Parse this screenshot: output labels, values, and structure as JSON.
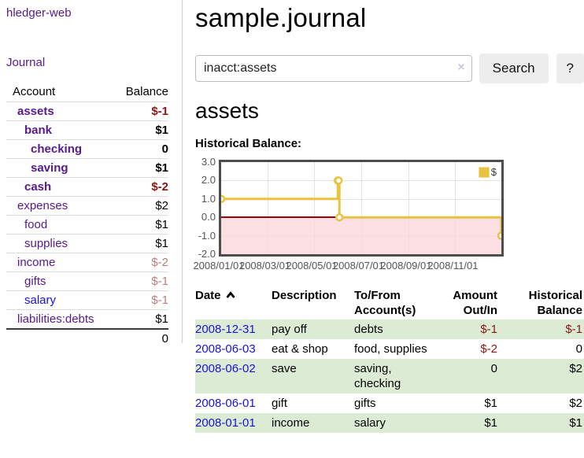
{
  "colors": {
    "link_purple": "#551a8b",
    "link_blue": "#1813d6",
    "negative": "#8b1717",
    "negative_muted": "#b87c7c",
    "row_green": "#dcecd4",
    "button_bg": "#ededed",
    "grid_line": "#e2e2e2",
    "chart_border": "#4d4d4d",
    "chart_negative_fill": "#fbd7db",
    "chart_zero_line": "#9d0000"
  },
  "sidebar": {
    "app_title": "hledger-web",
    "nav": {
      "journal_label": "Journal"
    },
    "accounts_table": {
      "headers": {
        "account": "Account",
        "balance": "Balance"
      },
      "rows": [
        {
          "name": "assets",
          "balance": "$-1",
          "level": 1,
          "in_account": true,
          "balance_style": "negative"
        },
        {
          "name": "bank",
          "balance": "$1",
          "level": 2,
          "in_account": true,
          "balance_style": "normal"
        },
        {
          "name": "checking",
          "balance": "0",
          "level": 3,
          "in_account": true,
          "balance_style": "normal"
        },
        {
          "name": "saving",
          "balance": "$1",
          "level": 3,
          "in_account": true,
          "balance_style": "normal"
        },
        {
          "name": "cash",
          "balance": "$-2",
          "level": 2,
          "in_account": true,
          "balance_style": "negative"
        },
        {
          "name": "expenses",
          "balance": "$2",
          "level": 1,
          "in_account": false,
          "balance_style": "normal"
        },
        {
          "name": "food",
          "balance": "$1",
          "level": 2,
          "in_account": false,
          "balance_style": "normal"
        },
        {
          "name": "supplies",
          "balance": "$1",
          "level": 2,
          "in_account": false,
          "balance_style": "normal"
        },
        {
          "name": "income",
          "balance": "$-2",
          "level": 1,
          "in_account": false,
          "balance_style": "negative-muted"
        },
        {
          "name": "gifts",
          "balance": "$-1",
          "level": 2,
          "in_account": false,
          "balance_style": "negative-muted"
        },
        {
          "name": "salary",
          "balance": "$-1",
          "level": 2,
          "in_account": false,
          "balance_style": "negative-muted",
          "link_style": "unvisited"
        },
        {
          "name": "liabilities:debts",
          "balance": "$1",
          "level": 1,
          "in_account": false,
          "balance_style": "normal"
        }
      ],
      "total": "0"
    }
  },
  "header": {
    "title": "sample.journal"
  },
  "search": {
    "value": "inacct:assets",
    "clear_icon": "×",
    "button_label": "Search",
    "help_label": "?"
  },
  "account_page": {
    "title": "assets",
    "chart_label": "Historical Balance:"
  },
  "chart_data": {
    "type": "line",
    "step": true,
    "title": "Historical Balance:",
    "ylim": [
      -2,
      3
    ],
    "xlim_days": [
      0,
      365
    ],
    "y_ticks": [
      3.0,
      2.0,
      1.0,
      0.0,
      -1.0,
      -2.0
    ],
    "x_ticks": [
      {
        "label": "2008/01/01",
        "day": 0
      },
      {
        "label": "2008/03/01",
        "day": 60
      },
      {
        "label": "2008/05/01",
        "day": 121
      },
      {
        "label": "2008/07/01",
        "day": 182
      },
      {
        "label": "2008/09/01",
        "day": 244
      },
      {
        "label": "2008/11/01",
        "day": 305
      }
    ],
    "series": [
      {
        "name": "$",
        "color": "#e9c340",
        "points": [
          {
            "date": "2008-01-01",
            "day": 0,
            "value": 1
          },
          {
            "date": "2008-06-01",
            "day": 152,
            "value": 2
          },
          {
            "date": "2008-06-02",
            "day": 153,
            "value": 2
          },
          {
            "date": "2008-06-03",
            "day": 154,
            "value": 0
          },
          {
            "date": "2008-12-31",
            "day": 365,
            "value": -1
          }
        ]
      }
    ],
    "legend_position": "top-right",
    "grid": true
  },
  "register_table": {
    "headers": {
      "date": "Date",
      "description": "Description",
      "tofrom": "To/From Account(s)",
      "amount": "Amount Out/In",
      "balance": "Historical Balance"
    },
    "rows": [
      {
        "date": "2008-12-31",
        "description": "pay off",
        "accounts": "debts",
        "amount": "$-1",
        "amount_negative": true,
        "balance": "$-1",
        "balance_negative": true
      },
      {
        "date": "2008-06-03",
        "description": "eat & shop",
        "accounts": "food, supplies",
        "amount": "$-2",
        "amount_negative": true,
        "balance": "0",
        "balance_negative": false
      },
      {
        "date": "2008-06-02",
        "description": "save",
        "accounts": "saving, checking",
        "amount": "0",
        "amount_negative": false,
        "balance": "$2",
        "balance_negative": false
      },
      {
        "date": "2008-06-01",
        "description": "gift",
        "accounts": "gifts",
        "amount": "$1",
        "amount_negative": false,
        "balance": "$2",
        "balance_negative": false
      },
      {
        "date": "2008-01-01",
        "description": "income",
        "accounts": "salary",
        "amount": "$1",
        "amount_negative": false,
        "balance": "$1",
        "balance_negative": false
      }
    ]
  }
}
